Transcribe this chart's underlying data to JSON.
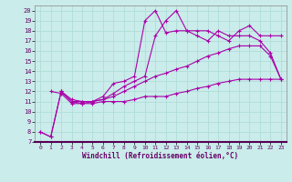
{
  "xlabel": "Windchill (Refroidissement éolien,°C)",
  "bg_color": "#caecea",
  "grid_color": "#b0ddd8",
  "line_color": "#aa00aa",
  "xlim": [
    -0.5,
    23.5
  ],
  "ylim": [
    7,
    20.5
  ],
  "xticks": [
    0,
    1,
    2,
    3,
    4,
    5,
    6,
    7,
    8,
    9,
    10,
    11,
    12,
    13,
    14,
    15,
    16,
    17,
    18,
    19,
    20,
    21,
    22,
    23
  ],
  "yticks": [
    7,
    8,
    9,
    10,
    11,
    12,
    13,
    14,
    15,
    16,
    17,
    18,
    19,
    20
  ],
  "s1_x": [
    0,
    1,
    2,
    3,
    4,
    5,
    6,
    7,
    8,
    9,
    10,
    11,
    12,
    13,
    14,
    15,
    16,
    17,
    18,
    19,
    20,
    21,
    22,
    23
  ],
  "s1_y": [
    8.0,
    7.5,
    12.0,
    11.0,
    10.8,
    10.8,
    11.0,
    11.0,
    11.0,
    11.2,
    11.5,
    11.5,
    11.5,
    11.8,
    12.0,
    12.3,
    12.5,
    12.8,
    13.0,
    13.2,
    13.2,
    13.2,
    13.2,
    13.2
  ],
  "s2_x": [
    0,
    1,
    2,
    3,
    4,
    5,
    6,
    7,
    8,
    9,
    10,
    11,
    12,
    13,
    14,
    15,
    16,
    17,
    18,
    19,
    20,
    21,
    22,
    23
  ],
  "s2_y": [
    8.0,
    7.5,
    12.0,
    11.2,
    11.0,
    11.0,
    11.2,
    11.5,
    12.0,
    12.5,
    13.0,
    13.5,
    13.8,
    14.2,
    14.5,
    15.0,
    15.5,
    15.8,
    16.2,
    16.5,
    16.5,
    16.5,
    15.5,
    13.2
  ],
  "s3_x": [
    2,
    3,
    4,
    5,
    6,
    7,
    8,
    9,
    10,
    11,
    12,
    13,
    14,
    15,
    16,
    17,
    18,
    19,
    20,
    21,
    22,
    23
  ],
  "s3_y": [
    12.0,
    11.0,
    11.0,
    11.0,
    11.2,
    11.8,
    12.5,
    13.0,
    13.5,
    17.5,
    19.0,
    20.0,
    18.0,
    18.0,
    18.0,
    17.5,
    17.0,
    18.0,
    18.5,
    17.5,
    17.5,
    17.5
  ],
  "s4_x": [
    1,
    2,
    3,
    4,
    5,
    6,
    7,
    8,
    9,
    10,
    11,
    12,
    13,
    14,
    15,
    16,
    17,
    18,
    19,
    20,
    21,
    22,
    23
  ],
  "s4_y": [
    12.0,
    11.8,
    10.8,
    10.8,
    11.0,
    11.5,
    12.8,
    13.0,
    13.5,
    19.0,
    20.0,
    17.8,
    18.0,
    18.0,
    17.5,
    17.0,
    18.0,
    17.5,
    17.5,
    17.5,
    17.0,
    15.8,
    13.2
  ]
}
